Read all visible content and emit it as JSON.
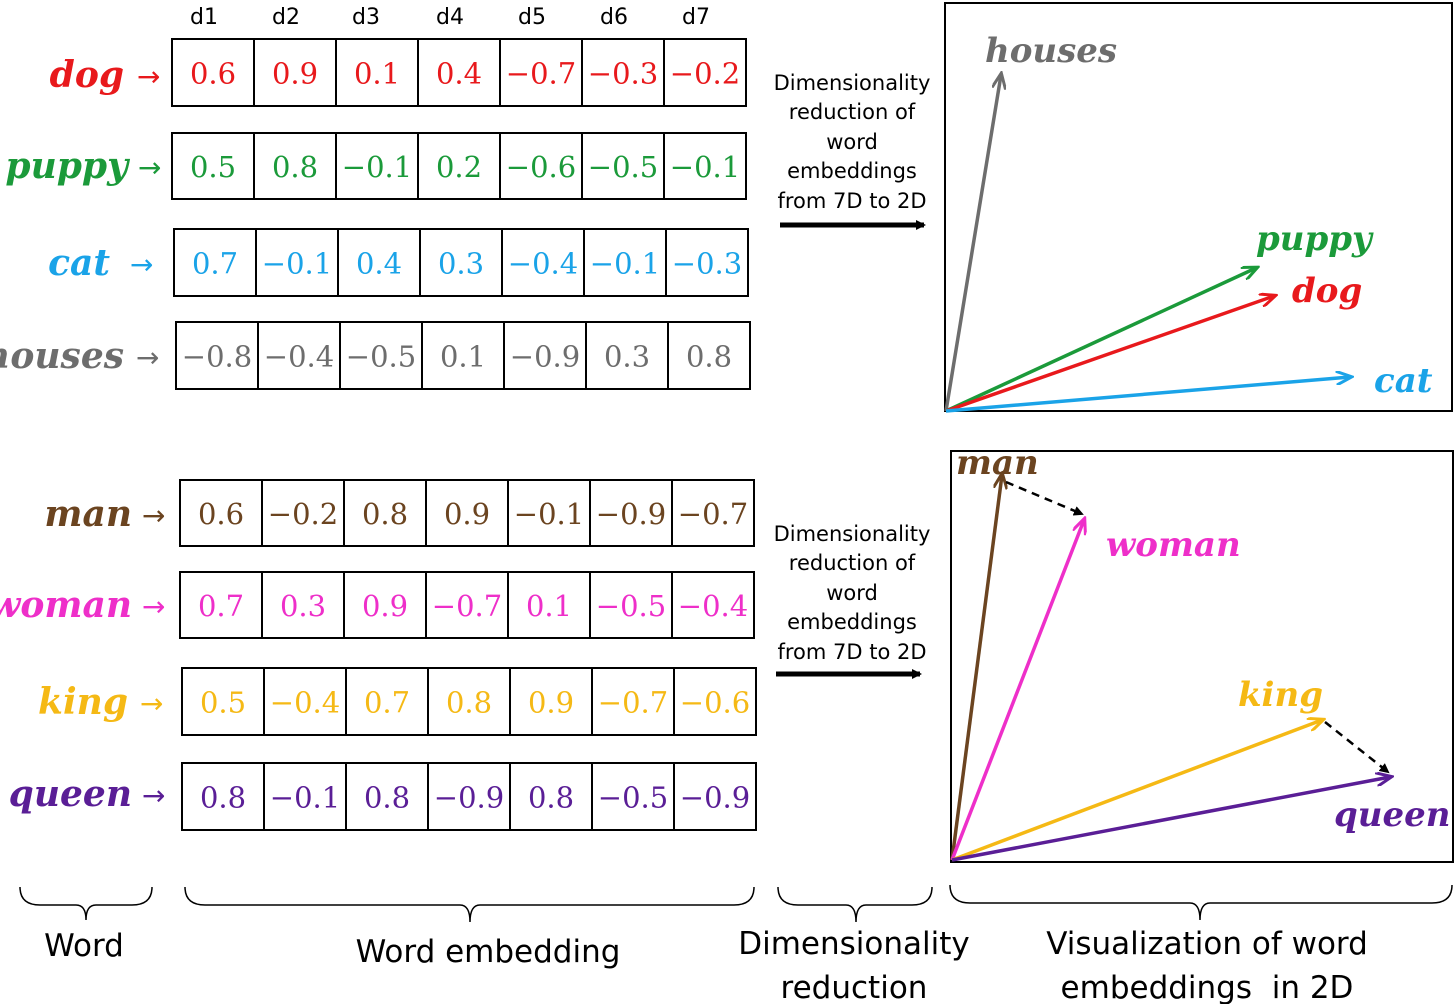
{
  "dimensions": [
    "d1",
    "d2",
    "d3",
    "d4",
    "d5",
    "d6",
    "d7"
  ],
  "arrow_glyph": "→",
  "groups": [
    {
      "words": [
        {
          "word": "dog",
          "color": "#e8191c",
          "values": [
            "0.6",
            "0.9",
            "0.1",
            "0.4",
            "−0.7",
            "−0.3",
            "−0.2"
          ]
        },
        {
          "word": "puppy",
          "color": "#1b9a3a",
          "values": [
            "0.5",
            "0.8",
            "−0.1",
            "0.2",
            "−0.6",
            "−0.5",
            "−0.1"
          ]
        },
        {
          "word": "cat",
          "color": "#1aa3e8",
          "values": [
            "0.7",
            "−0.1",
            "0.4",
            "0.3",
            "−0.4",
            "−0.1",
            "−0.3"
          ]
        },
        {
          "word": "houses",
          "color": "#6d6d6d",
          "values": [
            "−0.8",
            "−0.4",
            "−0.5",
            "0.1",
            "−0.9",
            "0.3",
            "0.8"
          ]
        }
      ],
      "reduction_text": [
        "Dimensionality",
        "reduction of",
        "word",
        "embeddings",
        "from 7D to 2D"
      ],
      "plot_labels": [
        "houses",
        "puppy",
        "dog",
        "cat"
      ]
    },
    {
      "words": [
        {
          "word": "man",
          "color": "#6b4420",
          "values": [
            "0.6",
            "−0.2",
            "0.8",
            "0.9",
            "−0.1",
            "−0.9",
            "−0.7"
          ]
        },
        {
          "word": "woman",
          "color": "#ee2fc9",
          "values": [
            "0.7",
            "0.3",
            "0.9",
            "−0.7",
            "0.1",
            "−0.5",
            "−0.4"
          ]
        },
        {
          "word": "king",
          "color": "#f5b915",
          "values": [
            "0.5",
            "−0.4",
            "0.7",
            "0.8",
            "0.9",
            "−0.7",
            "−0.6"
          ]
        },
        {
          "word": "queen",
          "color": "#5a1e96",
          "values": [
            "0.8",
            "−0.1",
            "0.8",
            "−0.9",
            "0.8",
            "−0.5",
            "−0.9"
          ]
        }
      ],
      "reduction_text": [
        "Dimensionality",
        "reduction of",
        "word",
        "embeddings",
        "from 7D to 2D"
      ],
      "plot_labels": [
        "man",
        "woman",
        "king",
        "queen"
      ]
    }
  ],
  "bottom_labels": {
    "word": "Word",
    "embedding": "Word embedding",
    "reduction": [
      "Dimensionality",
      "reduction"
    ],
    "visualization": [
      "Visualization of word",
      "embeddings  in 2D"
    ]
  }
}
